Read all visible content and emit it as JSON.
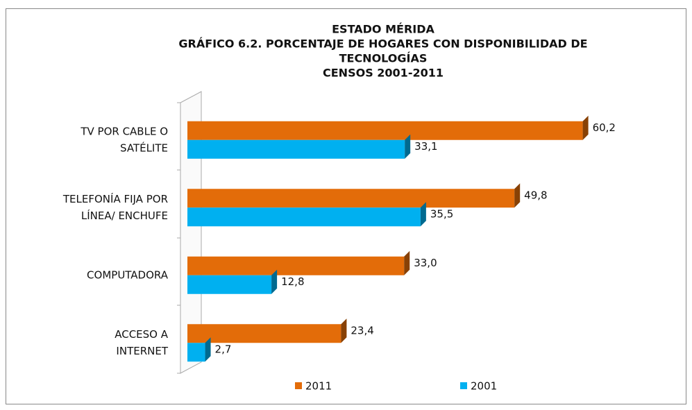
{
  "chart_data": {
    "type": "bar",
    "orientation": "horizontal",
    "title": [
      "ESTADO MÉRIDA",
      "GRÁFICO 6.2. PORCENTAJE DE HOGARES CON DISPONIBILIDAD  DE",
      "TECNOLOGÍAS",
      "CENSOS 2001-2011"
    ],
    "categories": [
      [
        "TV POR CABLE O",
        "SATÉLITE"
      ],
      [
        "TELEFONÍA FIJA POR",
        "LÍNEA/ ENCHUFE"
      ],
      [
        "COMPUTADORA"
      ],
      [
        "ACCESO A",
        "INTERNET"
      ]
    ],
    "series": [
      {
        "name": "2011",
        "color": "#e36c09",
        "values": [
          60.2,
          49.8,
          33.0,
          23.4
        ],
        "value_labels": [
          "60,2",
          "49,8",
          "33,0",
          "23,4"
        ]
      },
      {
        "name": "2001",
        "color": "#00b0f0",
        "values": [
          33.1,
          35.5,
          12.8,
          2.7
        ],
        "value_labels": [
          "33,1",
          "35,5",
          "12,8",
          "2,7"
        ]
      }
    ],
    "xlim": [
      0,
      65
    ]
  }
}
